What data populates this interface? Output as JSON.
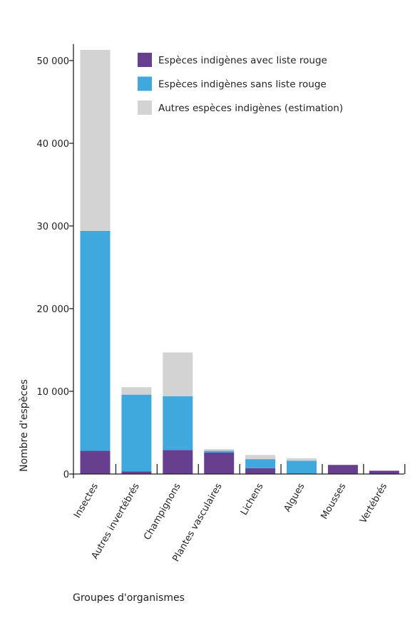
{
  "chart_data": {
    "type": "bar",
    "stacked": true,
    "title": "",
    "xlabel": "Groupes d'organismes",
    "ylabel": "Nombre d'espèces",
    "ylim": [
      0,
      52000
    ],
    "yticks": [
      0,
      10000,
      20000,
      30000,
      40000,
      50000
    ],
    "ytick_labels": [
      "0",
      "10 000",
      "20 000",
      "30 000",
      "40 000",
      "50 000"
    ],
    "grid": false,
    "legend_position": "top-right",
    "categories": [
      "Insectes",
      "Autres invertébrés",
      "Champignons",
      "Plantes vasculaires",
      "Lichens",
      "Algues",
      "Mousses",
      "Vertébrés"
    ],
    "series": [
      {
        "name": "Espèces indigènes avec liste rouge",
        "color": "#663f8f",
        "values": [
          2800,
          300,
          2900,
          2600,
          700,
          0,
          1100,
          400
        ]
      },
      {
        "name": "Espèces indigènes sans liste rouge",
        "color": "#3fa9de",
        "values": [
          26600,
          9300,
          6500,
          200,
          1100,
          1600,
          0,
          0
        ]
      },
      {
        "name": "Autres espèces indigènes (estimation)",
        "color": "#d3d3d3",
        "values": [
          21900,
          900,
          5300,
          200,
          500,
          300,
          0,
          0
        ]
      }
    ]
  }
}
